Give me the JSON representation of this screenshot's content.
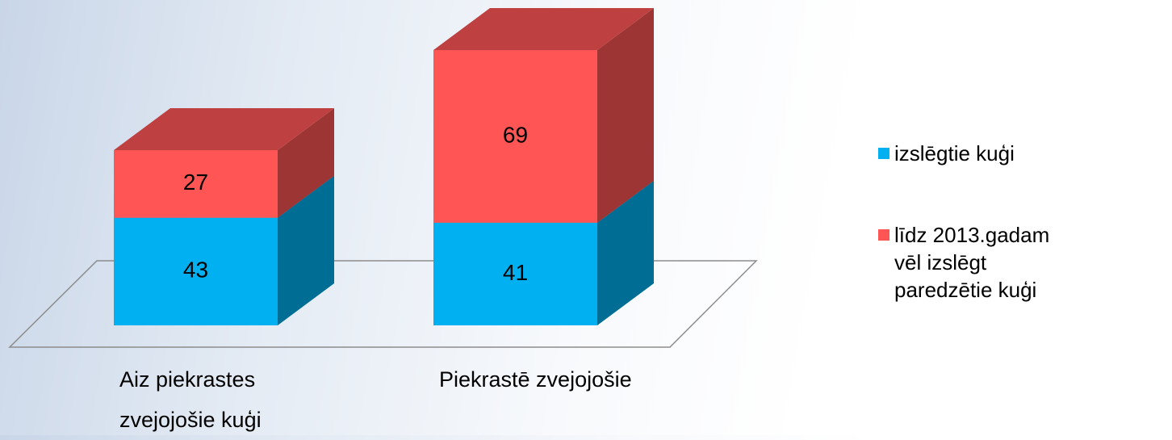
{
  "chart_data": {
    "type": "bar",
    "stacked": true,
    "categories": [
      "Aiz piekrastes zvejojošie kuģi",
      "Piekrastē zvejojošie"
    ],
    "series": [
      {
        "name": "izslēgtie kuģi",
        "color": "#00b0f0",
        "values": [
          43,
          41
        ]
      },
      {
        "name": "līdz 2013.gadam vēl izslēgt paredzētie kuģi",
        "color": "#ff5555",
        "values": [
          27,
          69
        ]
      }
    ]
  }
}
